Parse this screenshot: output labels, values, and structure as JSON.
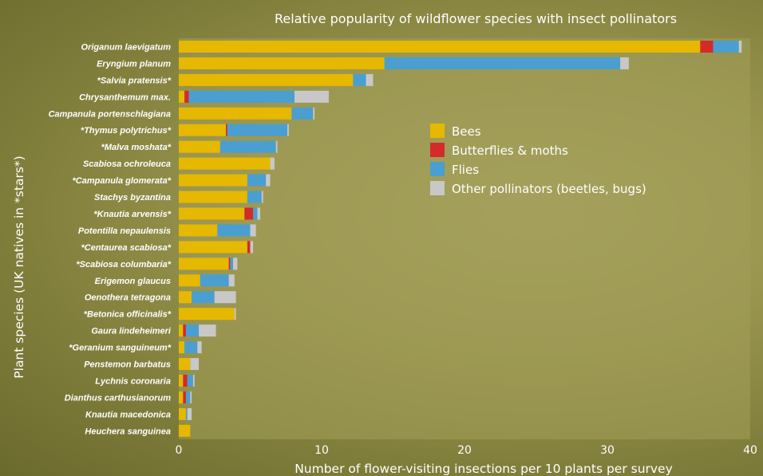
{
  "chart_data": {
    "type": "bar",
    "orientation": "horizontal",
    "stacked": true,
    "title": "Relative popularity of wildflower species with insect pollinators",
    "xlabel": "Number of flower-visiting insections per 10 plants per survey",
    "ylabel": "Plant species (UK natives in *stars*)",
    "xlim": [
      0,
      40
    ],
    "xticks": [
      0,
      10,
      20,
      30,
      40
    ],
    "grid": false,
    "legend_position": "center-right",
    "categories": [
      "Origanum laevigatum",
      "Eryngium planum",
      "*Salvia pratensis*",
      "Chrysanthemum max.",
      "Campanula portenschlagiana",
      "*Thymus polytrichus*",
      "*Malva moshata*",
      "Scabiosa ochroleuca",
      "*Campanula glomerata*",
      "Stachys byzantina",
      "*Knautia arvensis*",
      "Potentilla nepaulensis",
      "*Centaurea scabiosa*",
      "*Scabiosa columbaria*",
      "Erigemon glaucus",
      "Oenothera tetragona",
      "*Betonica officinalis*",
      "Gaura lindeheimeri",
      "*Geranium sanguineum*",
      "Penstemon barbatus",
      "Lychnis coronaria",
      "Dianthus carthusianorum",
      "Knautia macedonica",
      "Heuchera sanguinea"
    ],
    "series": [
      {
        "name": "Bees",
        "color": "#e6b800",
        "values": [
          36.5,
          14.4,
          12.2,
          0.4,
          7.9,
          3.3,
          2.9,
          6.4,
          4.8,
          4.8,
          4.6,
          2.7,
          4.8,
          3.5,
          1.5,
          0.9,
          3.9,
          0.3,
          0.4,
          0.8,
          0.3,
          0.3,
          0.5,
          0.8
        ]
      },
      {
        "name": "Butterflies & moths",
        "color": "#d42a2a",
        "values": [
          0.9,
          0.0,
          0.0,
          0.3,
          0.0,
          0.1,
          0.0,
          0.0,
          0.0,
          0.0,
          0.6,
          0.0,
          0.2,
          0.1,
          0.0,
          0.0,
          0.0,
          0.2,
          0.0,
          0.0,
          0.3,
          0.2,
          0.0,
          0.0
        ]
      },
      {
        "name": "Flies",
        "color": "#4a9fd0",
        "values": [
          1.8,
          16.5,
          0.9,
          7.4,
          1.5,
          4.2,
          3.9,
          0.0,
          1.3,
          1.0,
          0.3,
          2.3,
          0.0,
          0.2,
          2.0,
          1.6,
          0.0,
          0.9,
          0.9,
          0.0,
          0.4,
          0.3,
          0.1,
          0.0
        ]
      },
      {
        "name": "Other pollinators (beetles, bugs)",
        "color": "#c8c8c8",
        "values": [
          0.2,
          0.6,
          0.5,
          2.4,
          0.1,
          0.1,
          0.1,
          0.3,
          0.3,
          0.1,
          0.2,
          0.4,
          0.2,
          0.3,
          0.4,
          1.5,
          0.1,
          1.2,
          0.3,
          0.6,
          0.1,
          0.1,
          0.3,
          0.0
        ]
      }
    ]
  }
}
